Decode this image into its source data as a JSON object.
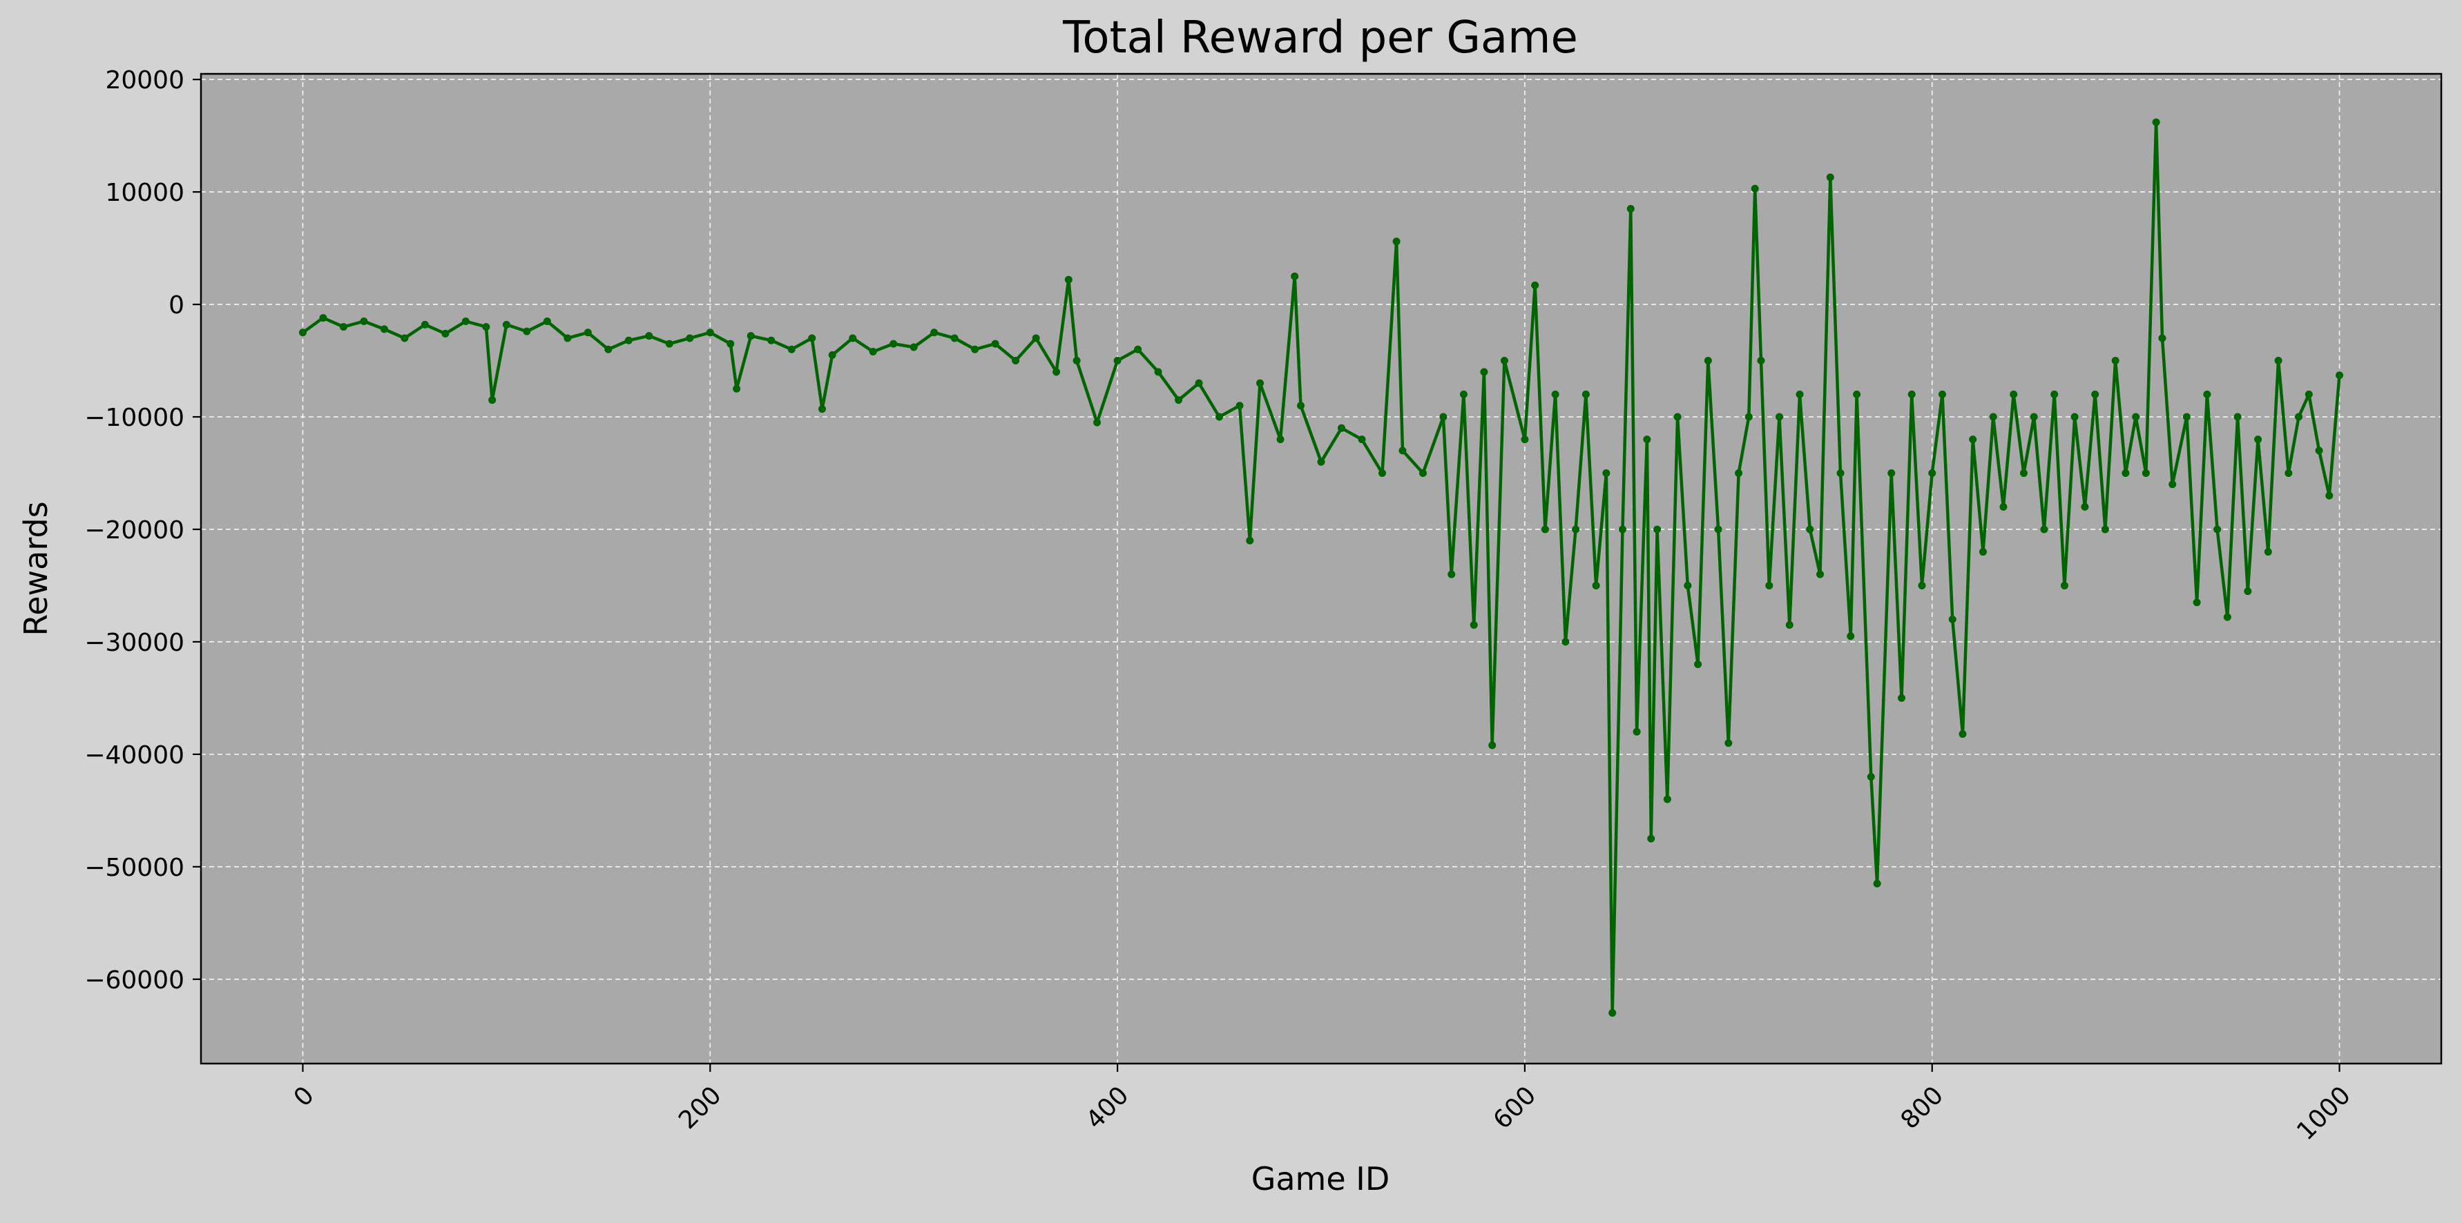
{
  "chart_data": {
    "type": "line",
    "title": "Total Reward per Game",
    "xlabel": "Game ID",
    "ylabel": "Rewards",
    "xlim": [
      -50,
      1050
    ],
    "ylim": [
      -67500,
      20500
    ],
    "xticks": [
      0,
      200,
      400,
      600,
      800,
      1000
    ],
    "yticks": [
      20000,
      10000,
      0,
      -10000,
      -20000,
      -30000,
      -40000,
      -50000,
      -60000
    ],
    "xtick_labels": [
      "0",
      "200",
      "400",
      "600",
      "800",
      "1000"
    ],
    "ytick_labels": [
      "20000",
      "10000",
      "0",
      "−10000",
      "−20000",
      "−30000",
      "−40000",
      "−50000",
      "−60000"
    ],
    "grid": true,
    "legend": "none",
    "colors": {
      "figure_background": "#d3d3d3",
      "plot_background": "#a9a9a9",
      "line": "#006400",
      "grid": "#ffffff"
    },
    "series": [
      {
        "x": [
          0,
          10,
          20,
          30,
          40,
          50,
          60,
          70,
          80,
          90,
          93,
          100,
          110,
          120,
          130,
          140,
          150,
          160,
          170,
          180,
          190,
          200,
          210,
          213,
          220,
          230,
          240,
          250,
          255,
          260,
          270,
          280,
          290,
          300,
          310,
          320,
          330,
          340,
          350,
          360,
          370,
          376,
          380,
          390,
          400,
          410,
          420,
          430,
          440,
          450,
          460,
          465,
          470,
          480,
          487,
          490,
          500,
          510,
          520,
          530,
          537,
          540,
          550,
          560,
          564,
          570,
          575,
          580,
          584,
          590,
          600,
          605,
          610,
          615,
          620,
          625,
          630,
          635,
          640,
          643,
          648,
          652,
          655,
          660,
          662,
          665,
          670,
          675,
          680,
          685,
          690,
          695,
          700,
          705,
          710,
          713,
          716,
          720,
          725,
          730,
          735,
          740,
          745,
          750,
          755,
          760,
          763,
          770,
          773,
          780,
          785,
          790,
          795,
          800,
          805,
          810,
          815,
          820,
          825,
          830,
          835,
          840,
          845,
          850,
          855,
          860,
          865,
          870,
          875,
          880,
          885,
          890,
          895,
          900,
          905,
          910,
          913,
          918,
          925,
          930,
          935,
          940,
          945,
          950,
          955,
          960,
          965,
          970,
          975,
          980,
          985,
          990,
          995,
          1000
        ],
        "y": [
          -2500,
          -1200,
          -2000,
          -1500,
          -2200,
          -3000,
          -1800,
          -2600,
          -1500,
          -2000,
          -8500,
          -1800,
          -2400,
          -1500,
          -3000,
          -2500,
          -4000,
          -3200,
          -2800,
          -3500,
          -3000,
          -2500,
          -3500,
          -7500,
          -2800,
          -3200,
          -4000,
          -3000,
          -9300,
          -4500,
          -3000,
          -4200,
          -3500,
          -3800,
          -2500,
          -3000,
          -4000,
          -3500,
          -5000,
          -3000,
          -6000,
          2200,
          -5000,
          -10500,
          -5000,
          -4000,
          -6000,
          -8500,
          -7000,
          -10000,
          -9000,
          -21000,
          -7000,
          -12000,
          2500,
          -9000,
          -14000,
          -11000,
          -12000,
          -15000,
          5600,
          -13000,
          -15000,
          -10000,
          -24000,
          -8000,
          -28500,
          -6000,
          -39200,
          -5000,
          -12000,
          1700,
          -20000,
          -8000,
          -30000,
          -20000,
          -8000,
          -25000,
          -15000,
          -63000,
          -20000,
          8500,
          -38000,
          -12000,
          -47500,
          -20000,
          -44000,
          -10000,
          -25000,
          -32000,
          -5000,
          -20000,
          -39000,
          -15000,
          -10000,
          10300,
          -5000,
          -25000,
          -10000,
          -28500,
          -8000,
          -20000,
          -24000,
          11300,
          -15000,
          -29500,
          -8000,
          -42000,
          -51500,
          -15000,
          -35000,
          -8000,
          -25000,
          -15000,
          -8000,
          -28000,
          -38200,
          -12000,
          -22000,
          -10000,
          -18000,
          -8000,
          -15000,
          -10000,
          -20000,
          -8000,
          -25000,
          -10000,
          -18000,
          -8000,
          -20000,
          -5000,
          -15000,
          -10000,
          -15000,
          16200,
          -3000,
          -16000,
          -10000,
          -26500,
          -8000,
          -20000,
          -27800,
          -10000,
          -25500,
          -12000,
          -22000,
          -5000,
          -15000,
          -10000,
          -8000,
          -13000,
          -17000,
          -6300
        ]
      }
    ]
  }
}
